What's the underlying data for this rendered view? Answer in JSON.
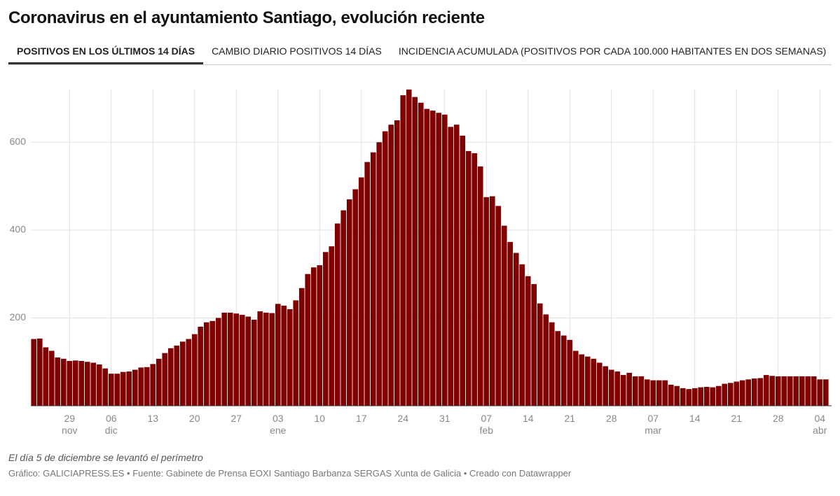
{
  "chart_data": {
    "type": "bar",
    "title": "Coronavirus en el ayuntamiento Santiago, evolución reciente",
    "tabs": [
      "POSITIVOS EN LOS ÚLTIMOS 14 DÍAS",
      "CAMBIO DIARIO POSITIVOS 14 DÍAS",
      "INCIDENCIA ACUMULADA (POSITIVOS POR CADA 100.000 HABITANTES EN DOS SEMANAS)"
    ],
    "categories": [
      null,
      null,
      null,
      null,
      null,
      null,
      "29\nnov",
      null,
      null,
      null,
      null,
      null,
      null,
      "06\ndic",
      null,
      null,
      null,
      null,
      null,
      null,
      "13",
      null,
      null,
      null,
      null,
      null,
      null,
      "20",
      null,
      null,
      null,
      null,
      null,
      null,
      "27",
      null,
      null,
      null,
      null,
      null,
      null,
      "03\nene",
      null,
      null,
      null,
      null,
      null,
      null,
      "10",
      null,
      null,
      null,
      null,
      null,
      null,
      "17",
      null,
      null,
      null,
      null,
      null,
      null,
      "24",
      null,
      null,
      null,
      null,
      null,
      null,
      "31",
      null,
      null,
      null,
      null,
      null,
      null,
      "07\nfeb",
      null,
      null,
      null,
      null,
      null,
      null,
      "14",
      null,
      null,
      null,
      null,
      null,
      null,
      "21",
      null,
      null,
      null,
      null,
      null,
      null,
      "28",
      null,
      null,
      null,
      null,
      null,
      null,
      "07\nmar",
      null,
      null,
      null,
      null,
      null,
      null,
      "14",
      null,
      null,
      null,
      null,
      null,
      null,
      "21",
      null,
      null,
      null,
      null,
      null,
      null,
      "28",
      null,
      null,
      null,
      null,
      null,
      null,
      "04\nabr",
      null
    ],
    "values": [
      152,
      153,
      133,
      125,
      110,
      107,
      102,
      103,
      102,
      100,
      98,
      94,
      85,
      73,
      73,
      77,
      78,
      82,
      87,
      88,
      95,
      107,
      120,
      131,
      137,
      146,
      152,
      163,
      180,
      190,
      193,
      200,
      212,
      212,
      210,
      207,
      203,
      196,
      215,
      212,
      211,
      232,
      228,
      220,
      240,
      268,
      300,
      315,
      320,
      350,
      363,
      415,
      445,
      470,
      493,
      520,
      555,
      577,
      600,
      625,
      640,
      650,
      707,
      720,
      703,
      690,
      676,
      672,
      667,
      663,
      635,
      640,
      615,
      580,
      575,
      545,
      475,
      477,
      455,
      410,
      373,
      348,
      322,
      295,
      277,
      233,
      208,
      190,
      170,
      160,
      150,
      125,
      117,
      112,
      107,
      98,
      90,
      82,
      78,
      70,
      75,
      67,
      67,
      60,
      58,
      58,
      58,
      48,
      45,
      40,
      38,
      40,
      42,
      43,
      42,
      45,
      50,
      52,
      55,
      58,
      60,
      62,
      63,
      70,
      68,
      67,
      67,
      67,
      67,
      67,
      67,
      67,
      60,
      60
    ],
    "color": "#7f0000",
    "ylim": [
      0,
      720
    ],
    "yticks": [
      200,
      400,
      600
    ],
    "grid": true,
    "note": "El día 5 de diciembre se levantó el perímetro",
    "source": "Gráfico: GALICIAPRESS.ES • Fuente: Gabinete de Prensa EOXI Santiago Barbanza SERGAS Xunta de Galicia • Creado con Datawrapper"
  }
}
